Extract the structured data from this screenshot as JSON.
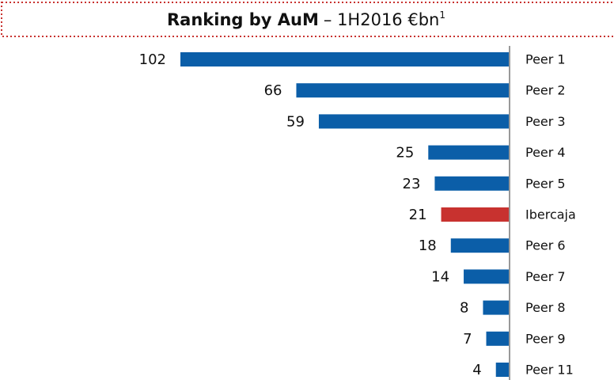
{
  "chart_data": {
    "type": "barh",
    "title": "Ranking by AuM",
    "subtitle": "– 1H2016  €bn",
    "title_note": "1",
    "categories": [
      "Peer 1",
      "Peer 2",
      "Peer 3",
      "Peer 4",
      "Peer 5",
      "Ibercaja",
      "Peer 6",
      "Peer 7",
      "Peer 8",
      "Peer 9",
      "Peer 11"
    ],
    "values": [
      102,
      66,
      59,
      25,
      23,
      21,
      18,
      14,
      8,
      7,
      4
    ],
    "colors": [
      "#0b5ea8",
      "#0b5ea8",
      "#0b5ea8",
      "#0b5ea8",
      "#0b5ea8",
      "#c8322f",
      "#0b5ea8",
      "#0b5ea8",
      "#0b5ea8",
      "#0b5ea8",
      "#0b5ea8"
    ]
  }
}
